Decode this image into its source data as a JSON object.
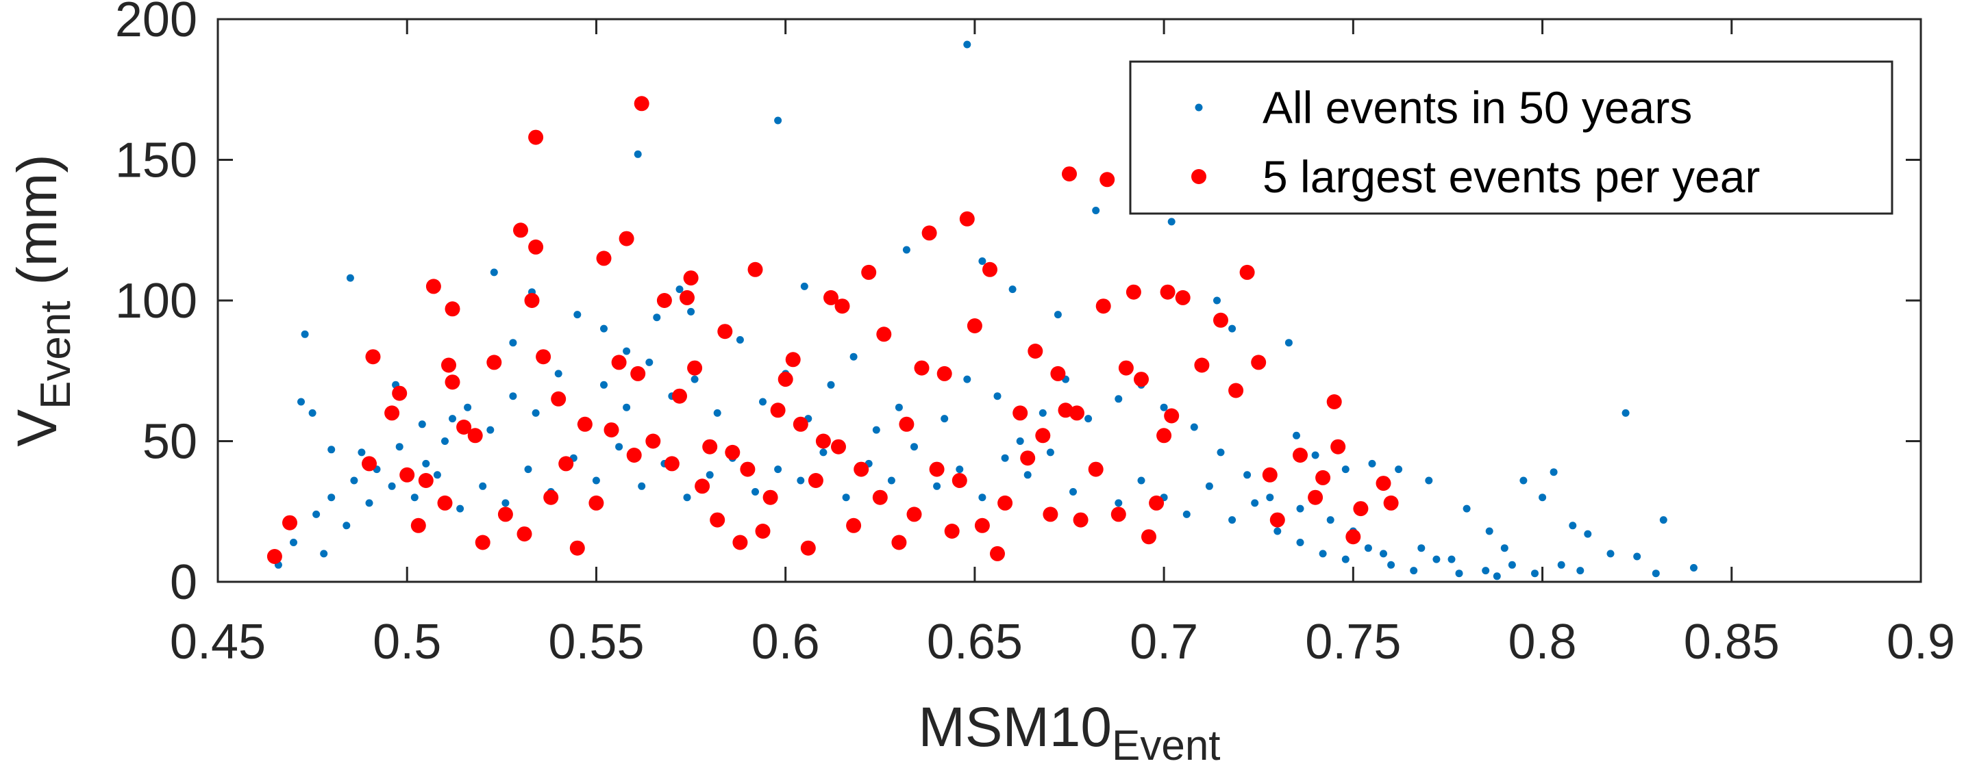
{
  "chart_data": {
    "type": "scatter",
    "title": "",
    "xlabel": "MSM10",
    "xlabel_sub": "Event",
    "ylabel": "V",
    "ylabel_sub": "Event",
    "ylabel_unit": " (mm)",
    "xlim": [
      0.45,
      0.9
    ],
    "ylim": [
      0,
      200
    ],
    "xticks": [
      0.45,
      0.5,
      0.55,
      0.6,
      0.65,
      0.7,
      0.75,
      0.8,
      0.85,
      0.9
    ],
    "xtick_labels": [
      "0.45",
      "0.5",
      "0.55",
      "0.6",
      "0.65",
      "0.7",
      "0.75",
      "0.8",
      "0.85",
      "0.9"
    ],
    "yticks": [
      0,
      50,
      100,
      150,
      200
    ],
    "ytick_labels": [
      "0",
      "50",
      "100",
      "150",
      "200"
    ],
    "grid": false,
    "legend_position": "top-right",
    "series": [
      {
        "name": "All events in 50 years",
        "color": "#0072BD",
        "marker": "small-dot",
        "points": [
          [
            0.473,
            88
          ],
          [
            0.485,
            108
          ],
          [
            0.49,
            80
          ],
          [
            0.472,
            64
          ],
          [
            0.475,
            60
          ],
          [
            0.48,
            47
          ],
          [
            0.488,
            46
          ],
          [
            0.497,
            70
          ],
          [
            0.505,
            42
          ],
          [
            0.512,
            58
          ],
          [
            0.523,
            110
          ],
          [
            0.528,
            85
          ],
          [
            0.533,
            103
          ],
          [
            0.545,
            95
          ],
          [
            0.552,
            90
          ],
          [
            0.558,
            82
          ],
          [
            0.561,
            152
          ],
          [
            0.572,
            104
          ],
          [
            0.566,
            94
          ],
          [
            0.575,
            96
          ],
          [
            0.598,
            164
          ],
          [
            0.605,
            105
          ],
          [
            0.632,
            118
          ],
          [
            0.648,
            191
          ],
          [
            0.652,
            114
          ],
          [
            0.66,
            104
          ],
          [
            0.672,
            95
          ],
          [
            0.682,
            132
          ],
          [
            0.702,
            128
          ],
          [
            0.714,
            100
          ],
          [
            0.718,
            90
          ],
          [
            0.733,
            85
          ],
          [
            0.735,
            52
          ],
          [
            0.74,
            45
          ],
          [
            0.748,
            40
          ],
          [
            0.755,
            42
          ],
          [
            0.762,
            40
          ],
          [
            0.77,
            36
          ],
          [
            0.78,
            26
          ],
          [
            0.786,
            18
          ],
          [
            0.79,
            12
          ],
          [
            0.795,
            36
          ],
          [
            0.8,
            30
          ],
          [
            0.803,
            39
          ],
          [
            0.808,
            20
          ],
          [
            0.812,
            17
          ],
          [
            0.818,
            10
          ],
          [
            0.822,
            60
          ],
          [
            0.825,
            9
          ],
          [
            0.832,
            22
          ],
          [
            0.84,
            5
          ],
          [
            0.83,
            3
          ],
          [
            0.81,
            4
          ],
          [
            0.805,
            6
          ],
          [
            0.798,
            3
          ],
          [
            0.785,
            4
          ],
          [
            0.776,
            8
          ],
          [
            0.768,
            12
          ],
          [
            0.758,
            10
          ],
          [
            0.75,
            18
          ],
          [
            0.744,
            22
          ],
          [
            0.736,
            26
          ],
          [
            0.728,
            30
          ],
          [
            0.722,
            38
          ],
          [
            0.715,
            46
          ],
          [
            0.708,
            55
          ],
          [
            0.7,
            62
          ],
          [
            0.694,
            70
          ],
          [
            0.688,
            65
          ],
          [
            0.68,
            58
          ],
          [
            0.674,
            72
          ],
          [
            0.668,
            60
          ],
          [
            0.662,
            50
          ],
          [
            0.656,
            66
          ],
          [
            0.648,
            72
          ],
          [
            0.642,
            58
          ],
          [
            0.636,
            76
          ],
          [
            0.63,
            62
          ],
          [
            0.624,
            54
          ],
          [
            0.618,
            80
          ],
          [
            0.612,
            70
          ],
          [
            0.606,
            58
          ],
          [
            0.6,
            74
          ],
          [
            0.594,
            64
          ],
          [
            0.588,
            86
          ],
          [
            0.582,
            60
          ],
          [
            0.576,
            72
          ],
          [
            0.57,
            66
          ],
          [
            0.564,
            78
          ],
          [
            0.558,
            62
          ],
          [
            0.552,
            70
          ],
          [
            0.546,
            56
          ],
          [
            0.54,
            74
          ],
          [
            0.534,
            60
          ],
          [
            0.528,
            66
          ],
          [
            0.522,
            54
          ],
          [
            0.516,
            62
          ],
          [
            0.51,
            50
          ],
          [
            0.504,
            56
          ],
          [
            0.498,
            48
          ],
          [
            0.492,
            40
          ],
          [
            0.486,
            36
          ],
          [
            0.48,
            30
          ],
          [
            0.476,
            24
          ],
          [
            0.47,
            14
          ],
          [
            0.466,
            6
          ],
          [
            0.478,
            10
          ],
          [
            0.484,
            20
          ],
          [
            0.49,
            28
          ],
          [
            0.496,
            34
          ],
          [
            0.502,
            30
          ],
          [
            0.508,
            38
          ],
          [
            0.514,
            26
          ],
          [
            0.52,
            34
          ],
          [
            0.526,
            28
          ],
          [
            0.532,
            40
          ],
          [
            0.538,
            32
          ],
          [
            0.544,
            44
          ],
          [
            0.55,
            36
          ],
          [
            0.556,
            48
          ],
          [
            0.562,
            34
          ],
          [
            0.568,
            42
          ],
          [
            0.574,
            30
          ],
          [
            0.58,
            38
          ],
          [
            0.586,
            44
          ],
          [
            0.592,
            32
          ],
          [
            0.598,
            40
          ],
          [
            0.604,
            36
          ],
          [
            0.61,
            46
          ],
          [
            0.616,
            30
          ],
          [
            0.622,
            42
          ],
          [
            0.628,
            36
          ],
          [
            0.634,
            48
          ],
          [
            0.64,
            34
          ],
          [
            0.646,
            40
          ],
          [
            0.652,
            30
          ],
          [
            0.658,
            44
          ],
          [
            0.664,
            38
          ],
          [
            0.67,
            46
          ],
          [
            0.676,
            32
          ],
          [
            0.682,
            40
          ],
          [
            0.688,
            28
          ],
          [
            0.694,
            36
          ],
          [
            0.7,
            30
          ],
          [
            0.706,
            24
          ],
          [
            0.712,
            34
          ],
          [
            0.718,
            22
          ],
          [
            0.724,
            28
          ],
          [
            0.73,
            18
          ],
          [
            0.736,
            14
          ],
          [
            0.742,
            10
          ],
          [
            0.748,
            8
          ],
          [
            0.754,
            12
          ],
          [
            0.76,
            6
          ],
          [
            0.766,
            4
          ],
          [
            0.772,
            8
          ],
          [
            0.778,
            3
          ],
          [
            0.788,
            2
          ],
          [
            0.792,
            6
          ]
        ]
      },
      {
        "name": "5 largest events per year",
        "color": "#FF0000",
        "marker": "large-dot",
        "points": [
          [
            0.465,
            9
          ],
          [
            0.469,
            21
          ],
          [
            0.491,
            80
          ],
          [
            0.49,
            42
          ],
          [
            0.496,
            60
          ],
          [
            0.498,
            67
          ],
          [
            0.5,
            38
          ],
          [
            0.503,
            20
          ],
          [
            0.505,
            36
          ],
          [
            0.507,
            105
          ],
          [
            0.51,
            28
          ],
          [
            0.511,
            77
          ],
          [
            0.512,
            97
          ],
          [
            0.512,
            71
          ],
          [
            0.515,
            55
          ],
          [
            0.518,
            52
          ],
          [
            0.52,
            14
          ],
          [
            0.523,
            78
          ],
          [
            0.526,
            24
          ],
          [
            0.53,
            125
          ],
          [
            0.531,
            17
          ],
          [
            0.533,
            100
          ],
          [
            0.534,
            119
          ],
          [
            0.534,
            158
          ],
          [
            0.536,
            80
          ],
          [
            0.538,
            30
          ],
          [
            0.54,
            65
          ],
          [
            0.542,
            42
          ],
          [
            0.545,
            12
          ],
          [
            0.547,
            56
          ],
          [
            0.55,
            28
          ],
          [
            0.552,
            115
          ],
          [
            0.554,
            54
          ],
          [
            0.556,
            78
          ],
          [
            0.558,
            122
          ],
          [
            0.56,
            45
          ],
          [
            0.562,
            170
          ],
          [
            0.561,
            74
          ],
          [
            0.565,
            50
          ],
          [
            0.568,
            100
          ],
          [
            0.57,
            42
          ],
          [
            0.572,
            66
          ],
          [
            0.574,
            101
          ],
          [
            0.575,
            108
          ],
          [
            0.576,
            76
          ],
          [
            0.578,
            34
          ],
          [
            0.58,
            48
          ],
          [
            0.582,
            22
          ],
          [
            0.584,
            89
          ],
          [
            0.586,
            46
          ],
          [
            0.588,
            14
          ],
          [
            0.59,
            40
          ],
          [
            0.592,
            111
          ],
          [
            0.594,
            18
          ],
          [
            0.596,
            30
          ],
          [
            0.598,
            61
          ],
          [
            0.6,
            72
          ],
          [
            0.602,
            79
          ],
          [
            0.604,
            56
          ],
          [
            0.606,
            12
          ],
          [
            0.608,
            36
          ],
          [
            0.61,
            50
          ],
          [
            0.612,
            101
          ],
          [
            0.614,
            48
          ],
          [
            0.615,
            98
          ],
          [
            0.618,
            20
          ],
          [
            0.62,
            40
          ],
          [
            0.622,
            110
          ],
          [
            0.625,
            30
          ],
          [
            0.626,
            88
          ],
          [
            0.63,
            14
          ],
          [
            0.632,
            56
          ],
          [
            0.634,
            24
          ],
          [
            0.636,
            76
          ],
          [
            0.638,
            124
          ],
          [
            0.64,
            40
          ],
          [
            0.642,
            74
          ],
          [
            0.644,
            18
          ],
          [
            0.646,
            36
          ],
          [
            0.648,
            129
          ],
          [
            0.65,
            91
          ],
          [
            0.652,
            20
          ],
          [
            0.654,
            111
          ],
          [
            0.656,
            10
          ],
          [
            0.658,
            28
          ],
          [
            0.662,
            60
          ],
          [
            0.664,
            44
          ],
          [
            0.666,
            82
          ],
          [
            0.668,
            52
          ],
          [
            0.67,
            24
          ],
          [
            0.672,
            74
          ],
          [
            0.674,
            61
          ],
          [
            0.675,
            145
          ],
          [
            0.677,
            60
          ],
          [
            0.678,
            22
          ],
          [
            0.682,
            40
          ],
          [
            0.684,
            98
          ],
          [
            0.685,
            143
          ],
          [
            0.688,
            24
          ],
          [
            0.69,
            76
          ],
          [
            0.692,
            103
          ],
          [
            0.694,
            72
          ],
          [
            0.696,
            16
          ],
          [
            0.698,
            28
          ],
          [
            0.7,
            52
          ],
          [
            0.701,
            103
          ],
          [
            0.702,
            59
          ],
          [
            0.705,
            101
          ],
          [
            0.71,
            77
          ],
          [
            0.715,
            93
          ],
          [
            0.719,
            68
          ],
          [
            0.722,
            110
          ],
          [
            0.725,
            78
          ],
          [
            0.728,
            38
          ],
          [
            0.73,
            22
          ],
          [
            0.736,
            45
          ],
          [
            0.74,
            30
          ],
          [
            0.742,
            37
          ],
          [
            0.745,
            64
          ],
          [
            0.746,
            48
          ],
          [
            0.75,
            16
          ],
          [
            0.752,
            26
          ],
          [
            0.758,
            35
          ],
          [
            0.76,
            28
          ]
        ]
      }
    ]
  }
}
